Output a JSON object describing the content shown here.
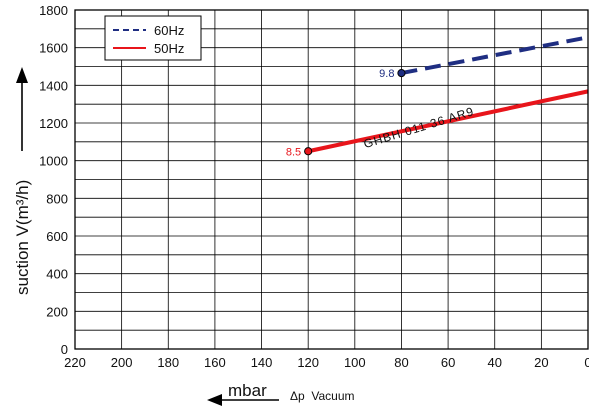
{
  "chart_data": {
    "type": "line",
    "title": "",
    "xlabel": "mbar",
    "xlabel_secondary": "Δp  Vacuum",
    "ylabel": "suction V(m³/h)",
    "xlim": [
      220,
      0
    ],
    "ylim": [
      0,
      1800
    ],
    "x_ticks": [
      "220",
      "200",
      "180",
      "160",
      "140",
      "120",
      "100",
      "80",
      "60",
      "40",
      "20",
      "0"
    ],
    "y_ticks": [
      "0",
      "200",
      "400",
      "600",
      "800",
      "1000",
      "1200",
      "1400",
      "1600",
      "1800"
    ],
    "grid": true,
    "legend_position": "top-left",
    "series": [
      {
        "name": "60Hz",
        "color": "#1f2e82",
        "style": "dashed",
        "x": [
          80,
          0
        ],
        "y": [
          1465,
          1655
        ],
        "start_label": "9.8"
      },
      {
        "name": "50Hz",
        "color": "#e8151b",
        "style": "solid",
        "x": [
          120,
          0
        ],
        "y": [
          1050,
          1368
        ],
        "start_label": "8.5"
      }
    ],
    "annotations": [
      {
        "text": "GHBH 011 36 AR9",
        "x": 72,
        "y": 1155,
        "rotate": -17
      }
    ]
  }
}
